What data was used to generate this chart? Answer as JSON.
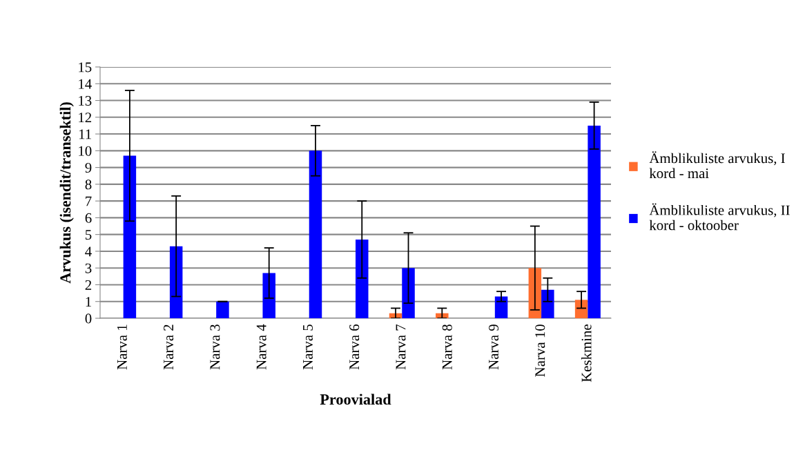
{
  "chart_data": {
    "type": "bar",
    "xlabel": "Proovialad",
    "ylabel": "Arvukus (isendit/transektil)",
    "categories": [
      "Narva 1",
      "Narva 2",
      "Narva 3",
      "Narva 4",
      "Narva 5",
      "Narva 6",
      "Narva 7",
      "Narva 8",
      "Narva 9",
      "Narva 10",
      "Keskmine"
    ],
    "series": [
      {
        "name": "Ämblikuliste arvukus, I kord - mai",
        "color": "#ff6d2e",
        "values": [
          0,
          0,
          0,
          0,
          0,
          0,
          0.3,
          0.3,
          0,
          3.0,
          1.1
        ],
        "errors": [
          null,
          null,
          null,
          null,
          null,
          null,
          0.3,
          0.3,
          null,
          2.5,
          0.5
        ]
      },
      {
        "name": "Ämblikuliste arvukus, II kord - oktoober",
        "color": "#0000ff",
        "values": [
          9.7,
          4.3,
          1.0,
          2.7,
          10.0,
          4.7,
          3.0,
          0,
          1.3,
          1.7,
          11.5
        ],
        "errors": [
          3.9,
          3.0,
          0,
          1.5,
          1.5,
          2.3,
          2.1,
          null,
          0.3,
          0.7,
          1.4
        ]
      }
    ],
    "ylim": [
      0,
      15
    ],
    "yticks": [
      0,
      1,
      2,
      3,
      4,
      5,
      6,
      7,
      8,
      9,
      10,
      11,
      12,
      13,
      14,
      15
    ],
    "grid": "y",
    "legend": "right"
  }
}
